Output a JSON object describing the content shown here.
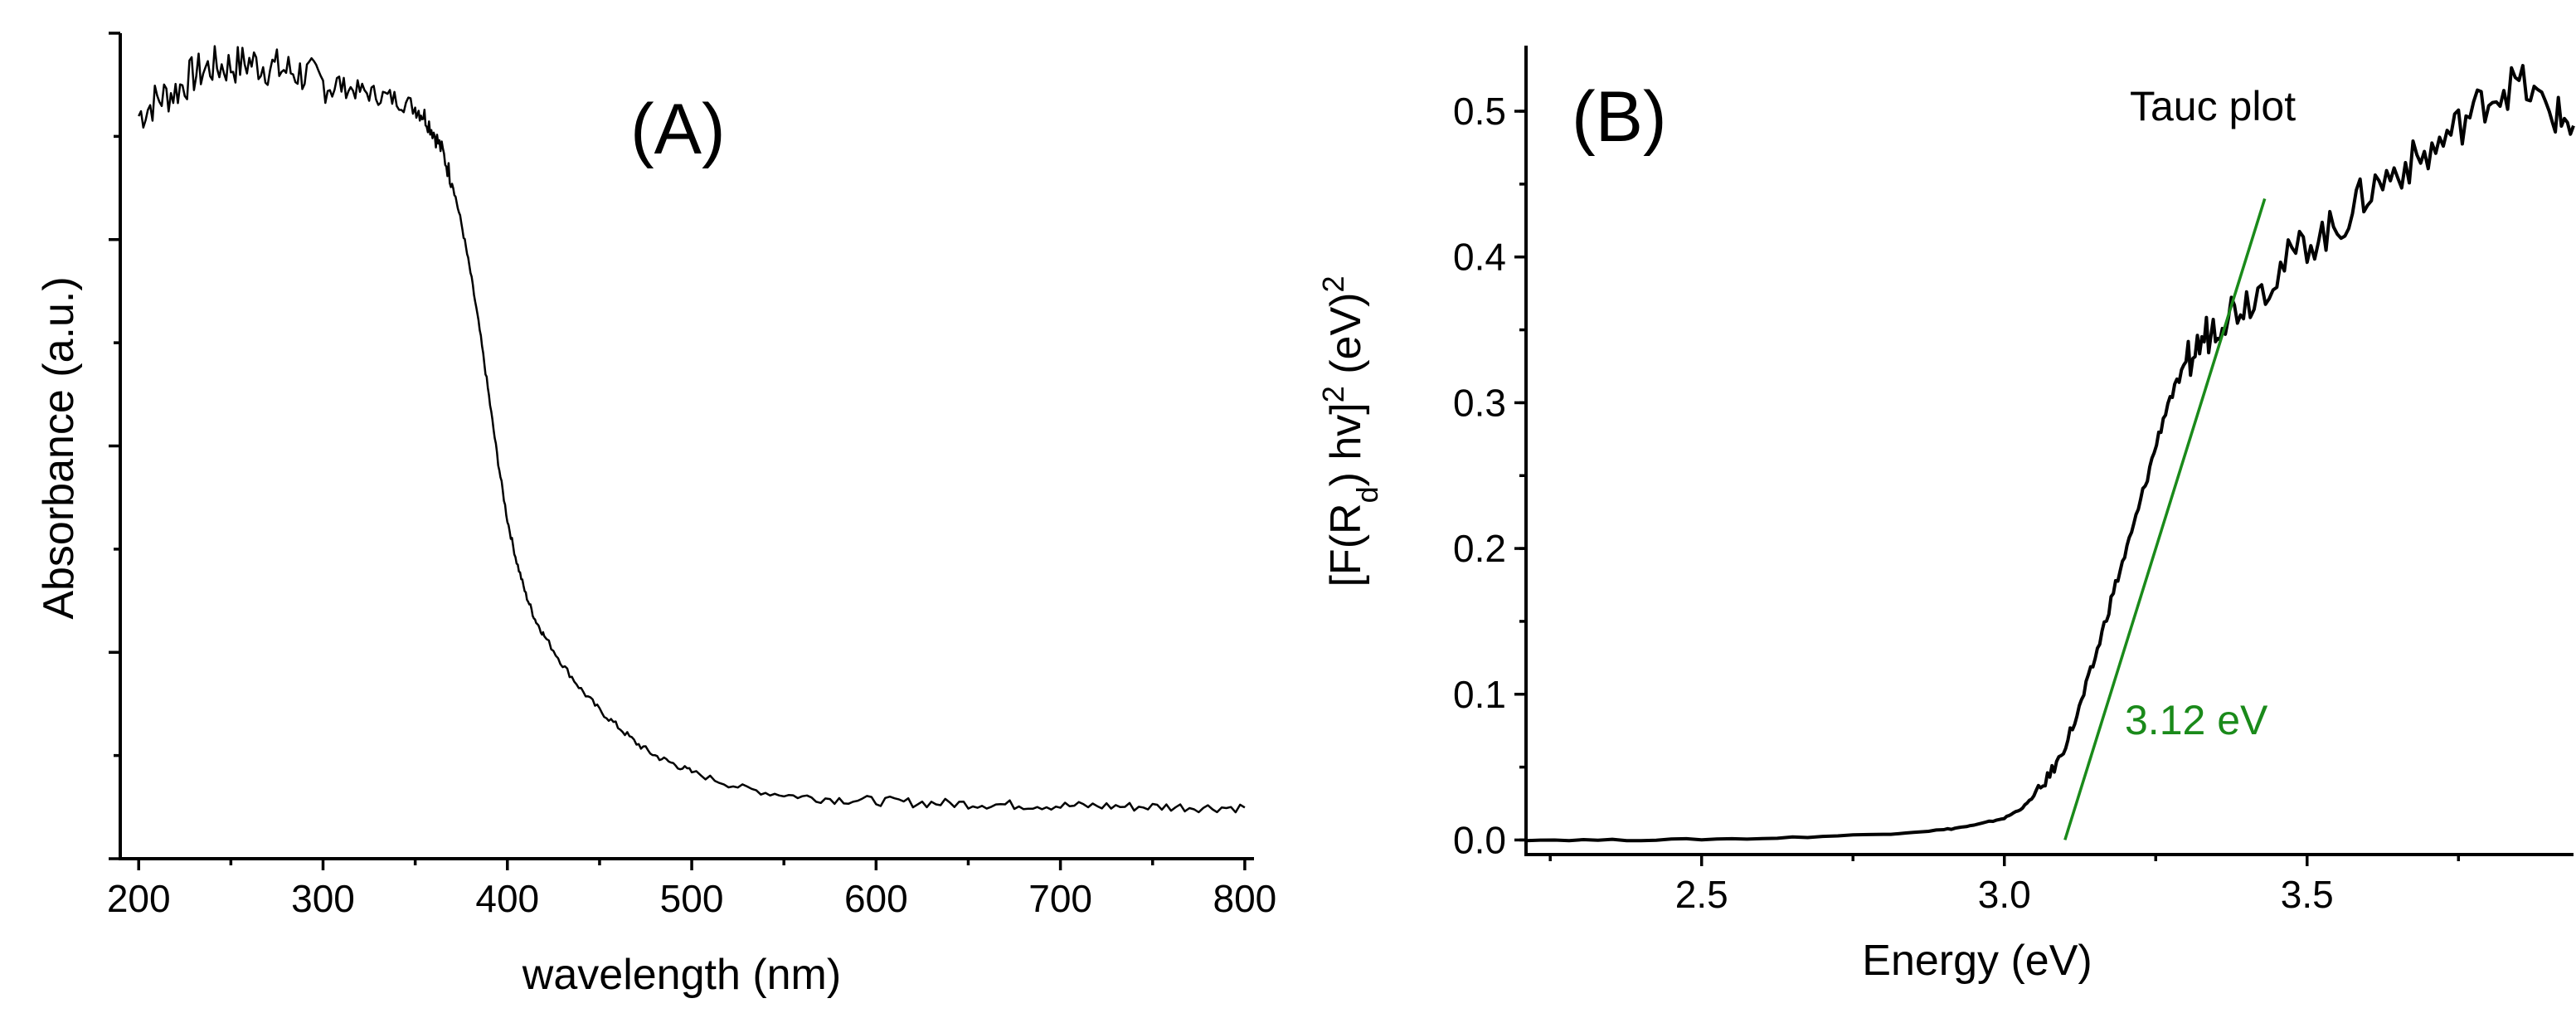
{
  "chart_data": [
    {
      "type": "line",
      "panel_label": "(A)",
      "xlabel": "wavelength (nm)",
      "ylabel": "Absorbance (a.u.)",
      "xlim": [
        190,
        805
      ],
      "ylim": [
        0,
        1.0
      ],
      "xticks": [
        200,
        300,
        400,
        500,
        600,
        700,
        800
      ],
      "yticks_labeled": false,
      "series": [
        {
          "color": "#000000",
          "x": [
            200,
            210,
            220,
            230,
            240,
            250,
            260,
            270,
            280,
            290,
            300,
            310,
            320,
            330,
            340,
            350,
            355,
            360,
            365,
            370,
            375,
            380,
            385,
            390,
            395,
            400,
            405,
            410,
            415,
            420,
            430,
            440,
            450,
            460,
            470,
            480,
            490,
            500,
            520,
            540,
            560,
            580,
            600,
            620,
            640,
            660,
            680,
            700,
            720,
            740,
            760,
            780,
            800
          ],
          "y": [
            0.9,
            0.92,
            0.93,
            0.95,
            0.96,
            0.96,
            0.965,
            0.96,
            0.955,
            0.95,
            0.94,
            0.935,
            0.93,
            0.925,
            0.92,
            0.91,
            0.9,
            0.88,
            0.855,
            0.82,
            0.77,
            0.71,
            0.64,
            0.56,
            0.48,
            0.41,
            0.36,
            0.32,
            0.29,
            0.27,
            0.235,
            0.205,
            0.18,
            0.16,
            0.14,
            0.125,
            0.115,
            0.105,
            0.09,
            0.08,
            0.075,
            0.072,
            0.07,
            0.068,
            0.067,
            0.066,
            0.065,
            0.064,
            0.064,
            0.063,
            0.063,
            0.062,
            0.062
          ]
        }
      ]
    },
    {
      "type": "line",
      "panel_label": "(B)",
      "title": "Tauc plot",
      "xlabel": "Energy (eV)",
      "ylabel_main": "[F(R",
      "ylabel_sub": "d",
      "ylabel_mid": ") hv]",
      "ylabel_sup": "2",
      "ylabel_tail": " (eV)",
      "ylabel_sup2": "2",
      "xlim": [
        2.21,
        3.94
      ],
      "ylim": [
        -0.01,
        0.545
      ],
      "xticks": [
        2.5,
        3.0,
        3.5
      ],
      "xtick_labels": [
        "2.5",
        "3.0",
        "3.5"
      ],
      "yticks": [
        0.0,
        0.1,
        0.2,
        0.3,
        0.4,
        0.5
      ],
      "ytick_labels": [
        "0.0",
        "0.1",
        "0.2",
        "0.3",
        "0.4",
        "0.5"
      ],
      "annotation": "3.12 eV",
      "annotation_color": "#1a8a1a",
      "series": [
        {
          "color": "#000000",
          "x": [
            2.21,
            2.4,
            2.6,
            2.8,
            2.9,
            2.95,
            3.0,
            3.03,
            3.06,
            3.09,
            3.12,
            3.15,
            3.18,
            3.21,
            3.24,
            3.27,
            3.3,
            3.33,
            3.36,
            3.4,
            3.45,
            3.5,
            3.55,
            3.6,
            3.65,
            3.7,
            3.75,
            3.8,
            3.85,
            3.9,
            3.94
          ],
          "y": [
            0.0,
            0.0,
            0.001,
            0.004,
            0.007,
            0.01,
            0.015,
            0.022,
            0.035,
            0.055,
            0.085,
            0.125,
            0.17,
            0.21,
            0.255,
            0.3,
            0.325,
            0.345,
            0.36,
            0.37,
            0.39,
            0.41,
            0.42,
            0.445,
            0.46,
            0.47,
            0.49,
            0.51,
            0.52,
            0.5,
            0.49
          ]
        },
        {
          "color": "#1a8a1a",
          "x": [
            3.1,
            3.43
          ],
          "y": [
            0.0,
            0.44
          ]
        }
      ]
    }
  ]
}
